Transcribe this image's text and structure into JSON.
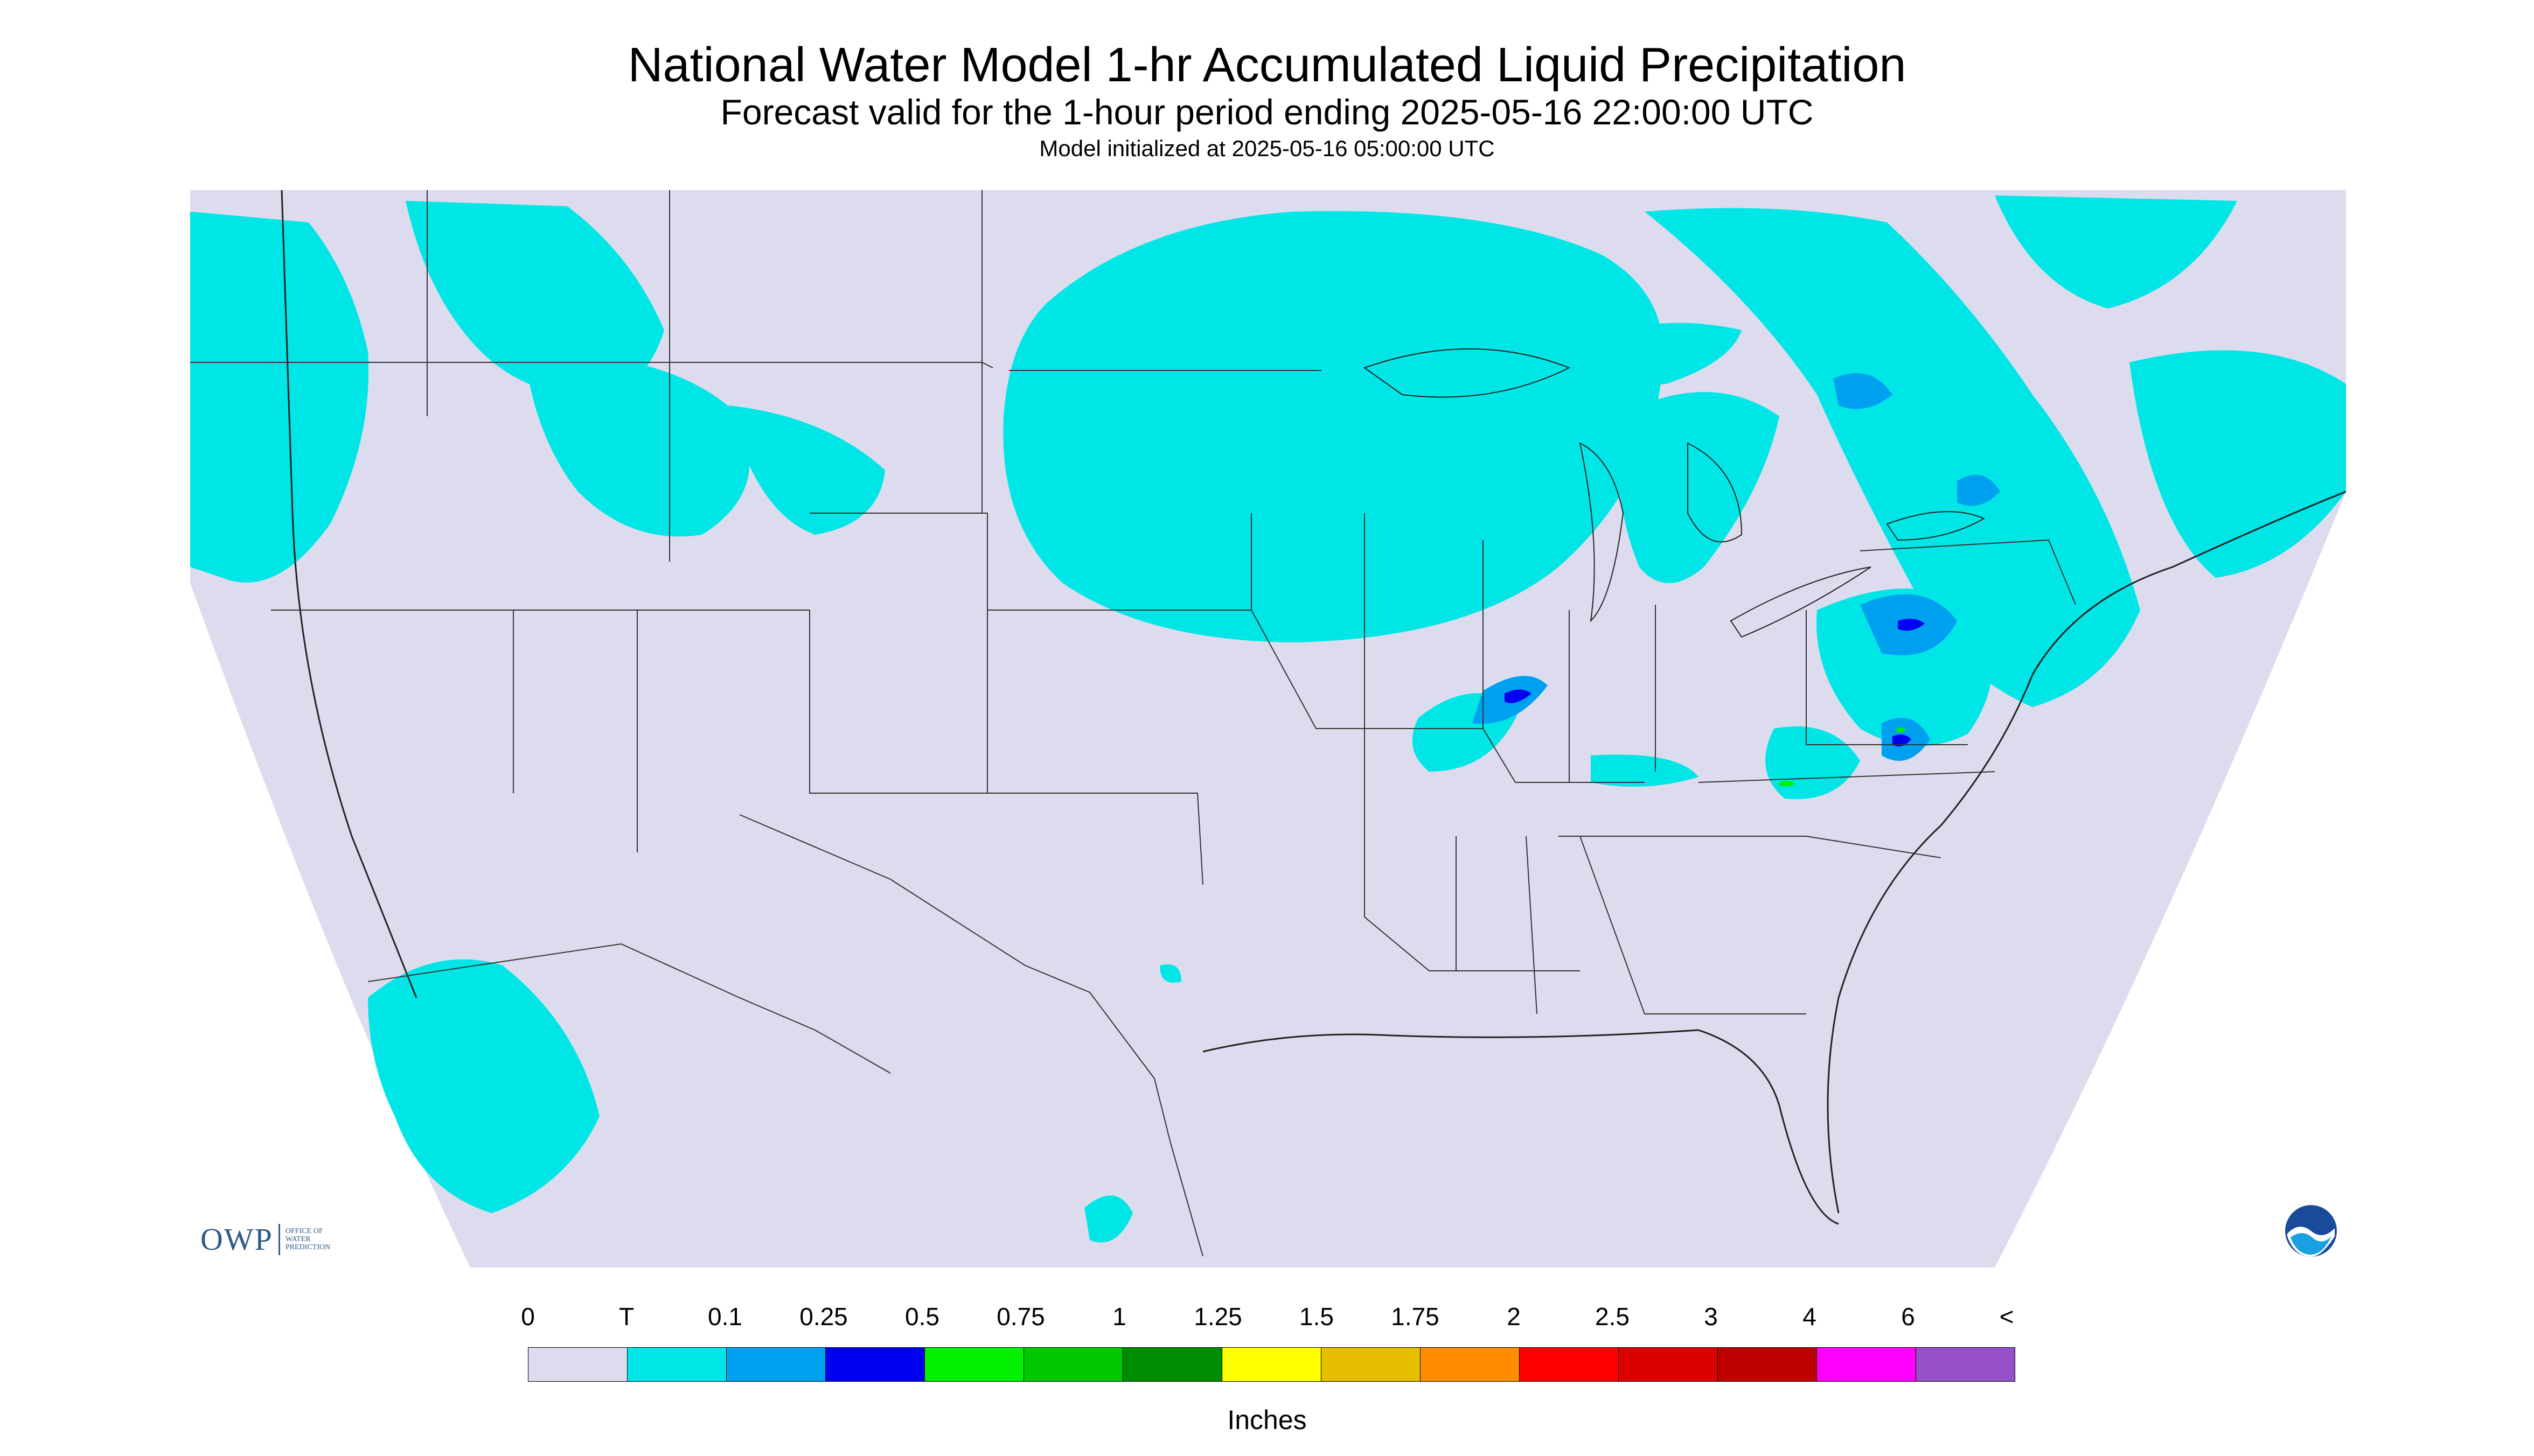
{
  "title": "National Water Model 1-hr Accumulated Liquid Precipitation",
  "subtitle": "Forecast valid for the 1-hour period ending 2025-05-16 22:00:00 UTC",
  "init_line": "Model initialized at 2025-05-16 05:00:00 UTC",
  "logos": {
    "owp_text": "OWP",
    "owp_small": "OFFICE OF WATER PREDICTION",
    "noaa_text": "NOAA"
  },
  "legend": {
    "units_label": "Inches",
    "labels": [
      "0",
      "T",
      "0.1",
      "0.25",
      "0.5",
      "0.75",
      "1",
      "1.25",
      "1.5",
      "1.75",
      "2",
      "2.5",
      "3",
      "4",
      "6",
      "<"
    ],
    "colors": [
      "#dcdcee",
      "#00e6e6",
      "#00a0f0",
      "#0000f0",
      "#00f000",
      "#00c800",
      "#008c00",
      "#ffff00",
      "#e6be00",
      "#ff8c00",
      "#ff0000",
      "#dc0000",
      "#be0000",
      "#ff00ff",
      "#9650c8"
    ]
  },
  "map_colors": {
    "background": "#dcdcee",
    "outside": "#ffffff",
    "borders": "#333333"
  }
}
